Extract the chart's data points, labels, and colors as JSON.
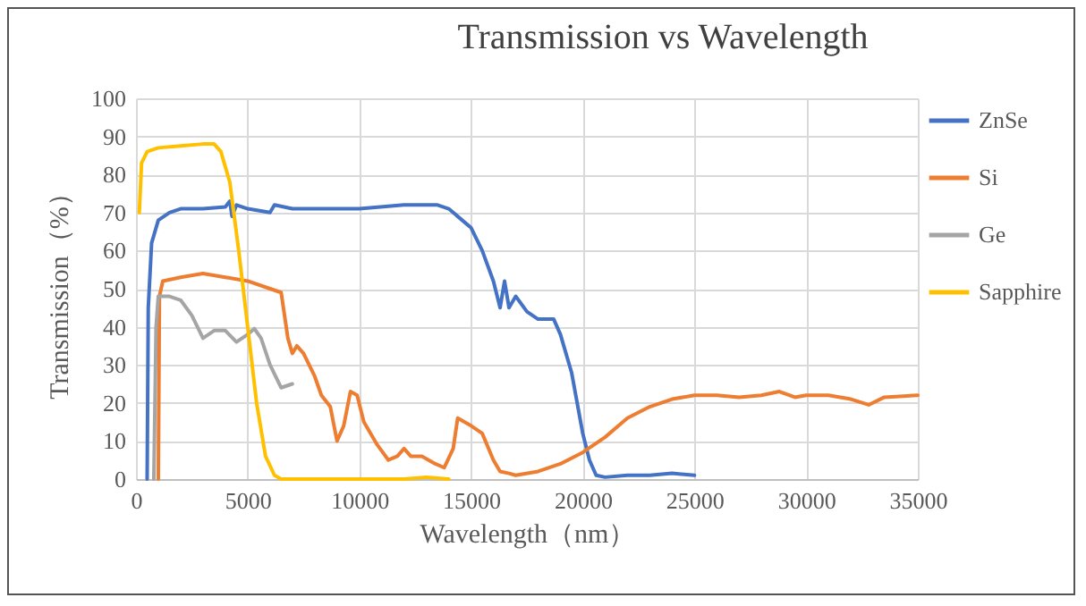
{
  "chart_data": {
    "type": "line",
    "title": "Transmission vs Wavelength",
    "xlabel": "Wavelength（nm）",
    "ylabel": "Transmission（%）",
    "xlim": [
      0,
      35000
    ],
    "xticks": [
      0,
      5000,
      10000,
      15000,
      20000,
      25000,
      30000,
      35000
    ],
    "ylim": [
      0,
      100
    ],
    "yticks": [
      0,
      10,
      20,
      30,
      40,
      50,
      60,
      70,
      80,
      90,
      100
    ],
    "grid": true,
    "legend": "right",
    "line_style": "solid",
    "marker": "none",
    "series": [
      {
        "name": "ZnSe",
        "color": "#4472c4",
        "x": [
          500,
          550,
          700,
          1000,
          1500,
          2000,
          3000,
          4000,
          4200,
          4300,
          4500,
          5000,
          6000,
          6200,
          7000,
          10000,
          12000,
          13500,
          14000,
          15000,
          15500,
          16000,
          16300,
          16500,
          16700,
          17000,
          17500,
          18000,
          18700,
          19000,
          19500,
          20000,
          20300,
          20600,
          21000,
          22000,
          23000,
          24000,
          25000
        ],
        "values": [
          0,
          45,
          62,
          68,
          70,
          71,
          71,
          71.5,
          73,
          69,
          72,
          71,
          70,
          72,
          71,
          71,
          72,
          72,
          71,
          66,
          60,
          52,
          45,
          52,
          45,
          48,
          44,
          42,
          42,
          38,
          28,
          12,
          5,
          1,
          0.5,
          1,
          1,
          1.5,
          1
        ]
      },
      {
        "name": "Si",
        "color": "#ed7d31",
        "x": [
          1000,
          1050,
          1200,
          2000,
          3000,
          4000,
          5000,
          6000,
          6500,
          6800,
          7000,
          7200,
          7500,
          8000,
          8300,
          8700,
          9000,
          9300,
          9600,
          9900,
          10200,
          10800,
          11300,
          11700,
          12000,
          12300,
          12800,
          13400,
          13800,
          14200,
          14400,
          15000,
          15500,
          16000,
          16300,
          16700,
          17000,
          18000,
          19000,
          20000,
          21000,
          22000,
          23000,
          24000,
          25000,
          26000,
          27000,
          28000,
          28800,
          29500,
          30000,
          31000,
          32000,
          32800,
          33500,
          35000
        ],
        "values": [
          0,
          48,
          52,
          53,
          54,
          53,
          52,
          50,
          49,
          37,
          33,
          35,
          33,
          27,
          22,
          19,
          10,
          14,
          23,
          22,
          15,
          9,
          5,
          6,
          8,
          6,
          6,
          4,
          3,
          8,
          16,
          14,
          12,
          5,
          2,
          1.5,
          1,
          2,
          4,
          7,
          11,
          16,
          19,
          21,
          22,
          22,
          21.5,
          22,
          23,
          21.5,
          22,
          22,
          21,
          19.5,
          21.5,
          22
        ]
      },
      {
        "name": "Ge",
        "color": "#a5a5a5",
        "x": [
          800,
          900,
          1000,
          1500,
          2000,
          2500,
          3000,
          3500,
          4000,
          4500,
          5000,
          5300,
          5600,
          6000,
          6500,
          7000
        ],
        "values": [
          0,
          40,
          48,
          48,
          47,
          43,
          37,
          39,
          39,
          36,
          38,
          39.5,
          37,
          30,
          24,
          25
        ]
      },
      {
        "name": "Sapphire",
        "color": "#ffc000",
        "x": [
          150,
          250,
          500,
          1000,
          2000,
          3000,
          3500,
          3800,
          4200,
          4600,
          5000,
          5400,
          5800,
          6200,
          6500,
          8000,
          10000,
          12000,
          13000,
          14000
        ],
        "values": [
          70,
          83,
          86,
          87,
          87.5,
          88,
          88,
          86,
          78,
          60,
          40,
          20,
          6,
          1,
          0,
          0,
          0,
          0,
          0.5,
          0
        ]
      }
    ]
  }
}
